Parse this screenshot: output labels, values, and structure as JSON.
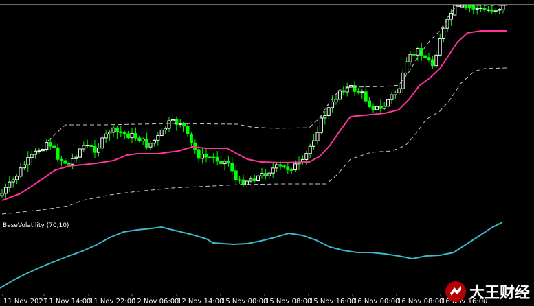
{
  "indicator": {
    "label": "BaseVolatility (70,10)"
  },
  "time_axis": {
    "labels": [
      "11 Nov 2021",
      "11 Nov 14:00",
      "11 Nov 22:00",
      "12 Nov 06:00",
      "12 Nov 14:00",
      "15 Nov 00:00",
      "15 Nov 08:00",
      "15 Nov 16:00",
      "16 Nov 00:00",
      "16 Nov 08:00",
      "16 Nov 16:00"
    ]
  },
  "colors": {
    "background": "#000000",
    "candle_bull": "#ffffff",
    "candle_bear": "#00ff00",
    "mid_band": "#ff3399",
    "outer_band": "#c8c8c8",
    "volatility_line": "#3ab9c9",
    "separator": "#808080"
  },
  "watermark": {
    "text": "大王财经"
  }
}
